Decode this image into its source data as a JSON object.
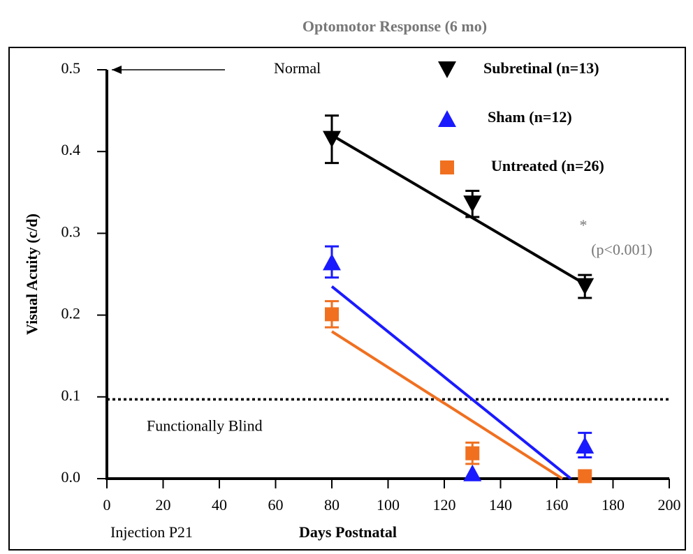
{
  "chart_data": {
    "type": "scatter",
    "title": "Optomotor Response (6 mo)",
    "xlabel": "Days Postnatal",
    "ylabel": "Visual Acuity (c/d)",
    "xlim": [
      0,
      200
    ],
    "ylim": [
      0,
      0.5
    ],
    "xticks": [
      0,
      20,
      40,
      60,
      80,
      100,
      120,
      140,
      160,
      180,
      200
    ],
    "yticks": [
      {
        "value": 0,
        "label": "0.0"
      },
      0.1,
      0.2,
      0.3,
      0.4,
      0.5
    ],
    "x": [
      80,
      130,
      170
    ],
    "series": [
      {
        "name": "Subretinal (n=13)",
        "color": "#000000",
        "marker": "triangle-down",
        "values": [
          0.415,
          0.336,
          0.235
        ],
        "errors": [
          0.029,
          0.016,
          0.014
        ],
        "fit": {
          "x": [
            80,
            170
          ],
          "values": [
            0.42,
            0.238
          ]
        }
      },
      {
        "name": "Sham (n=12)",
        "color": "#1a1aff",
        "marker": "triangle-up",
        "values": [
          0.265,
          0.007,
          0.041
        ],
        "errors": [
          0.019,
          null,
          0.015
        ],
        "fit": {
          "x": [
            80,
            165
          ],
          "values": [
            0.235,
            0
          ]
        }
      },
      {
        "name": "Untreated (n=26)",
        "color": "#f07020",
        "marker": "square",
        "values": [
          0.201,
          0.031,
          0.003
        ],
        "errors": [
          0.016,
          0.013,
          null
        ],
        "fit": {
          "x": [
            80,
            162
          ],
          "values": [
            0.18,
            0
          ]
        }
      }
    ],
    "reference_lines": [
      {
        "label": "Normal",
        "value": 0.5
      },
      {
        "label": "Functionally Blind",
        "value": 0.097
      }
    ],
    "annotations": [
      "Injection P21",
      "*",
      "(p<0.001)"
    ]
  }
}
